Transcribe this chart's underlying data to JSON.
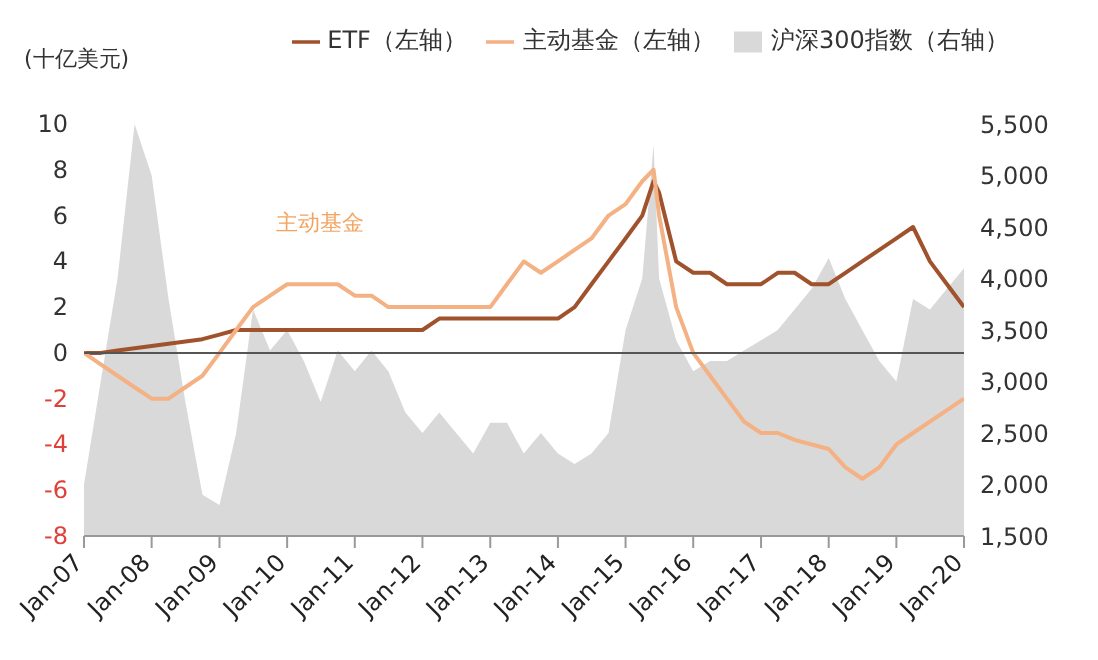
{
  "chart_data": {
    "type": "line",
    "ylabel": "(十亿美元)",
    "legend": "top",
    "x": [
      "2007-01",
      "2007-04",
      "2007-07",
      "2007-10",
      "2008-01",
      "2008-04",
      "2008-07",
      "2008-10",
      "2009-01",
      "2009-04",
      "2009-07",
      "2009-10",
      "2010-01",
      "2010-04",
      "2010-07",
      "2010-10",
      "2011-01",
      "2011-04",
      "2011-07",
      "2011-10",
      "2012-01",
      "2012-04",
      "2012-07",
      "2012-10",
      "2013-01",
      "2013-04",
      "2013-07",
      "2013-10",
      "2014-01",
      "2014-04",
      "2014-07",
      "2014-10",
      "2015-01",
      "2015-04",
      "2015-06",
      "2015-07",
      "2015-10",
      "2016-01",
      "2016-04",
      "2016-07",
      "2016-10",
      "2017-01",
      "2017-04",
      "2017-07",
      "2017-10",
      "2018-01",
      "2018-04",
      "2018-07",
      "2018-10",
      "2019-01",
      "2019-04",
      "2019-07",
      "2019-10",
      "2020-01"
    ],
    "series": [
      {
        "name": "沪深300指数（右轴）",
        "type": "area",
        "axis": "y2",
        "color": "#d9d9d9",
        "values": [
          2000,
          3000,
          4000,
          5500,
          5000,
          3800,
          2800,
          1900,
          1800,
          2500,
          3700,
          3300,
          3500,
          3200,
          2800,
          3300,
          3100,
          3300,
          3100,
          2700,
          2500,
          2700,
          2500,
          2300,
          2600,
          2600,
          2300,
          2500,
          2300,
          2200,
          2300,
          2500,
          3500,
          4000,
          5300,
          4000,
          3400,
          3100,
          3200,
          3200,
          3300,
          3400,
          3500,
          3700,
          3900,
          4200,
          3800,
          3500,
          3200,
          3000,
          3800,
          3700,
          3900,
          4100
        ]
      },
      {
        "name": "ETF（左轴）",
        "color": "#a0522d",
        "values": [
          0,
          0,
          0.1,
          0.2,
          0.3,
          0.4,
          0.5,
          0.6,
          0.8,
          1,
          1,
          1,
          1,
          1,
          1,
          1,
          1,
          1,
          1,
          1,
          1,
          1.5,
          1.5,
          1.5,
          1.5,
          1.5,
          1.5,
          1.5,
          1.5,
          2,
          3,
          4,
          5,
          6,
          7.5,
          7,
          4,
          3.5,
          3.5,
          3,
          3,
          3,
          3.5,
          3.5,
          3,
          3,
          3.5,
          4,
          4.5,
          5,
          5.5,
          4,
          3,
          2
        ]
      },
      {
        "name": "主动基金（左轴）",
        "color": "#f4b183",
        "values": [
          0,
          -0.5,
          -1,
          -1.5,
          -2,
          -2,
          -1.5,
          -1,
          0,
          1,
          2,
          2.5,
          3,
          3,
          3,
          3,
          2.5,
          2.5,
          2,
          2,
          2,
          2,
          2,
          2,
          2,
          3,
          4,
          3.5,
          4,
          4.5,
          5,
          6,
          6.5,
          7.5,
          8,
          6,
          2,
          0,
          -1,
          -2,
          -3,
          -3.5,
          -3.5,
          -3.8,
          -4,
          -4.2,
          -5,
          -5.5,
          -5,
          -4,
          -3.5,
          -3,
          -2.5,
          -2
        ]
      }
    ],
    "annotations": [
      "主动基金"
    ],
    "xlim": [
      "2007-01",
      "2020-01"
    ],
    "xticks": [
      {
        "value": "2007-01",
        "label": "Jan-07"
      },
      {
        "value": "2008-01",
        "label": "Jan-08"
      },
      {
        "value": "2009-01",
        "label": "Jan-09"
      },
      {
        "value": "2010-01",
        "label": "Jan-10"
      },
      {
        "value": "2011-01",
        "label": "Jan-11"
      },
      {
        "value": "2012-01",
        "label": "Jan-12"
      },
      {
        "value": "2013-01",
        "label": "Jan-13"
      },
      {
        "value": "2014-01",
        "label": "Jan-14"
      },
      {
        "value": "2015-01",
        "label": "Jan-15"
      },
      {
        "value": "2016-01",
        "label": "Jan-16"
      },
      {
        "value": "2017-01",
        "label": "Jan-17"
      },
      {
        "value": "2018-01",
        "label": "Jan-18"
      },
      {
        "value": "2019-01",
        "label": "Jan-19"
      },
      {
        "value": "2020-01",
        "label": "Jan-20"
      }
    ],
    "ylim": [
      -8,
      10
    ],
    "yticks": [
      -8,
      -6,
      -4,
      -2,
      0,
      2,
      4,
      6,
      8,
      10
    ],
    "y2lim": [
      1500,
      5500
    ],
    "y2ticks": [
      {
        "value": 1500,
        "label": "1,500"
      },
      {
        "value": 2000,
        "label": "2,000"
      },
      {
        "value": 2500,
        "label": "2,500"
      },
      {
        "value": 3000,
        "label": "3,000"
      },
      {
        "value": 3500,
        "label": "3,500"
      },
      {
        "value": 4000,
        "label": "4,000"
      },
      {
        "value": 4500,
        "label": "4,500"
      },
      {
        "value": 5000,
        "label": "5,000"
      },
      {
        "value": 5500,
        "label": "5,500"
      }
    ]
  }
}
